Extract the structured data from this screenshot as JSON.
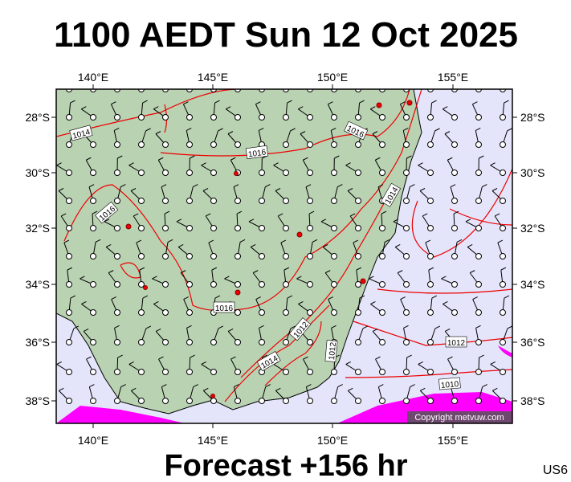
{
  "header": {
    "title": "1100 AEDT Sun 12 Oct 2025"
  },
  "map": {
    "lon_labels": [
      "140°E",
      "145°E",
      "150°E",
      "155°E"
    ],
    "lat_labels": [
      "28°S",
      "30°S",
      "32°S",
      "34°S",
      "36°S",
      "38°S"
    ],
    "isobar_labels": [
      "1014",
      "1016",
      "1016",
      "1016",
      "1014",
      "1016",
      "1012",
      "1014",
      "1012",
      "1012",
      "1010"
    ],
    "copyright": "Copyright metvuw.com"
  },
  "footer": {
    "forecast": "Forecast +156 hr",
    "code": "US6"
  }
}
